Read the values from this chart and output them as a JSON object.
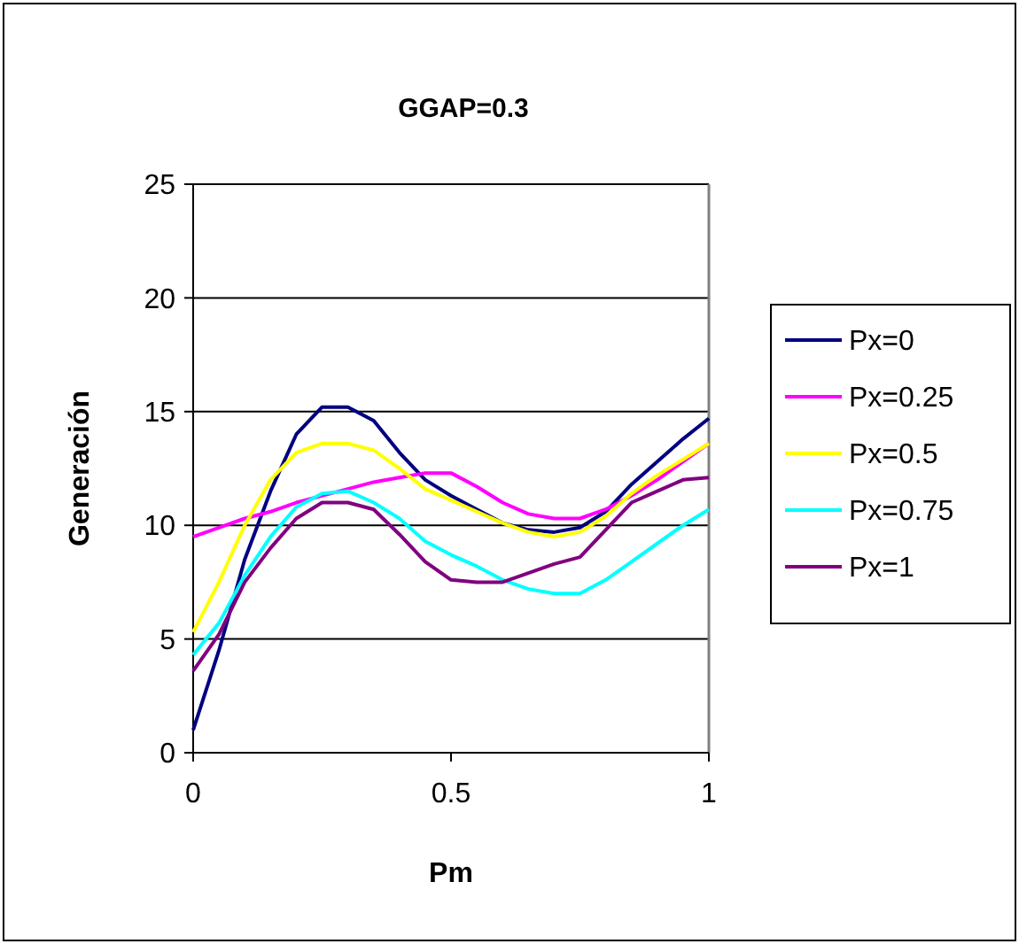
{
  "chart_data": {
    "type": "line",
    "title": "GGAP=0.3",
    "xlabel": "Pm",
    "ylabel": "Generación",
    "x": [
      0,
      0.05,
      0.1,
      0.15,
      0.2,
      0.25,
      0.3,
      0.35,
      0.4,
      0.45,
      0.5,
      0.55,
      0.6,
      0.65,
      0.7,
      0.75,
      0.8,
      0.85,
      0.9,
      0.95,
      1
    ],
    "series": [
      {
        "name": "Px=0",
        "color": "#000080",
        "values": [
          1.0,
          4.5,
          8.5,
          11.5,
          14.0,
          15.2,
          15.2,
          14.6,
          13.2,
          12.0,
          11.3,
          10.7,
          10.1,
          9.8,
          9.7,
          9.9,
          10.6,
          11.8,
          12.8,
          13.8,
          14.7
        ]
      },
      {
        "name": "Px=0.25",
        "color": "#ff00ff",
        "values": [
          9.5,
          9.9,
          10.3,
          10.6,
          11.0,
          11.3,
          11.6,
          11.9,
          12.1,
          12.3,
          12.3,
          11.7,
          11.0,
          10.5,
          10.3,
          10.3,
          10.7,
          11.3,
          12.0,
          12.8,
          13.6
        ]
      },
      {
        "name": "Px=0.5",
        "color": "#ffff00",
        "values": [
          5.3,
          7.5,
          10.0,
          12.0,
          13.2,
          13.6,
          13.6,
          13.3,
          12.5,
          11.6,
          11.1,
          10.6,
          10.1,
          9.7,
          9.5,
          9.7,
          10.4,
          11.4,
          12.2,
          12.9,
          13.6
        ]
      },
      {
        "name": "Px=0.75",
        "color": "#00ffff",
        "values": [
          4.3,
          5.7,
          7.8,
          9.5,
          10.8,
          11.4,
          11.5,
          11.0,
          10.3,
          9.3,
          8.7,
          8.2,
          7.6,
          7.2,
          7.0,
          7.0,
          7.6,
          8.4,
          9.2,
          10.0,
          10.7
        ]
      },
      {
        "name": "Px=1",
        "color": "#800080",
        "values": [
          3.6,
          5.2,
          7.5,
          9.0,
          10.3,
          11.0,
          11.0,
          10.7,
          9.6,
          8.4,
          7.6,
          7.5,
          7.5,
          7.9,
          8.3,
          8.6,
          9.8,
          11.0,
          11.5,
          12.0,
          12.1
        ]
      }
    ],
    "xlim": [
      0,
      1
    ],
    "xticks": [
      0,
      0.5,
      1
    ],
    "ylim": [
      0,
      25
    ],
    "yticks": [
      0,
      5,
      10,
      15,
      20,
      25
    ],
    "grid": "y",
    "legend": "right",
    "marker": "none",
    "line_style": "solid"
  }
}
